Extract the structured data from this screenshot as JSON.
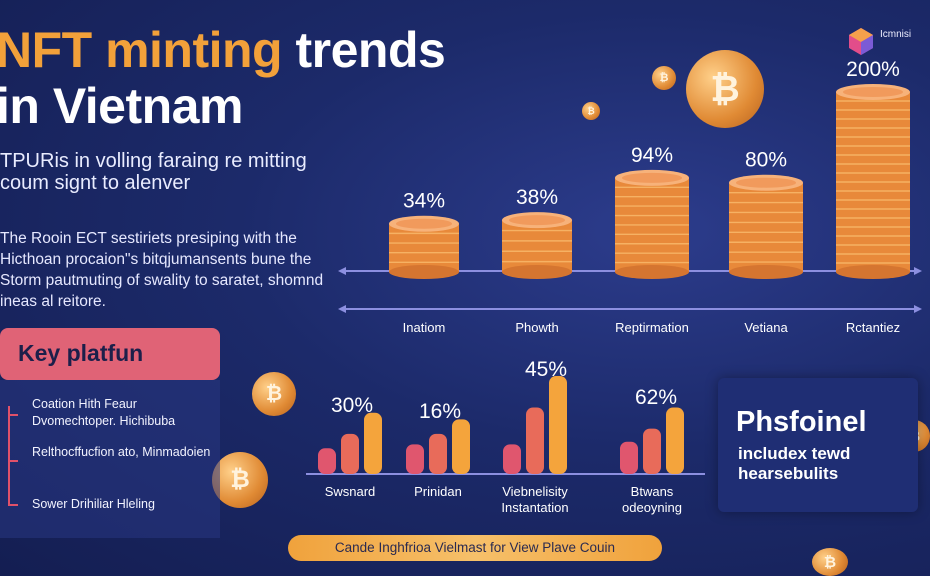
{
  "title_line1_a": "NFT minting",
  "title_line1_b": "trends",
  "title_line2": "in Vietnam",
  "subtitle": "TPURis in volling faraing re mitting coum signt to alenver",
  "description": "The Rooin ECT sestiriets presiping with the Hicthoan procaion\"s bitqjumansents bune the Storm pautmuting of swality to saratet, shomnd ineas al reitore.",
  "key_title": "Key platfun",
  "key_items": [
    "Coation Hith Feaur Dvomechtoper. Hichibuba",
    "Relthocffucfion ato, Minmadoien",
    "Sower Drihiliar Hleling"
  ],
  "right_box": {
    "title": "Phsfoinel",
    "body": "includex tewd hearsebulits"
  },
  "banner": "Cande Inghfrioa Vielmast for View Plave Couin",
  "logo_text": "Icmnisi",
  "coin_symbol": "₿",
  "colors": {
    "orange": "#f2a13a",
    "pink": "#e06376",
    "navy": "#1c2a6a"
  },
  "chart_data": [
    {
      "type": "bar",
      "title": "",
      "categories": [
        "Inatiom",
        "Phowth",
        "Reptirmation",
        "Vetiana",
        "Rctantiez"
      ],
      "values": [
        34,
        38,
        94,
        80,
        200
      ],
      "value_labels": [
        "34%",
        "38%",
        "94%",
        "80%",
        "200%"
      ],
      "ylim": [
        0,
        200
      ],
      "grid": false
    },
    {
      "type": "bar",
      "title": "",
      "categories": [
        "Swsnard",
        "Prinidan",
        "Viebnelisity Instantation",
        "Btwans odeoyning"
      ],
      "group_labels": [
        "30%",
        "16%",
        "45%",
        "62%"
      ],
      "series": [
        {
          "values": [
            15,
            18,
            18,
            20
          ]
        },
        {
          "values": [
            26,
            26,
            46,
            30
          ]
        },
        {
          "values": [
            42,
            37,
            70,
            46
          ]
        }
      ],
      "ylim": [
        0,
        70
      ]
    }
  ]
}
